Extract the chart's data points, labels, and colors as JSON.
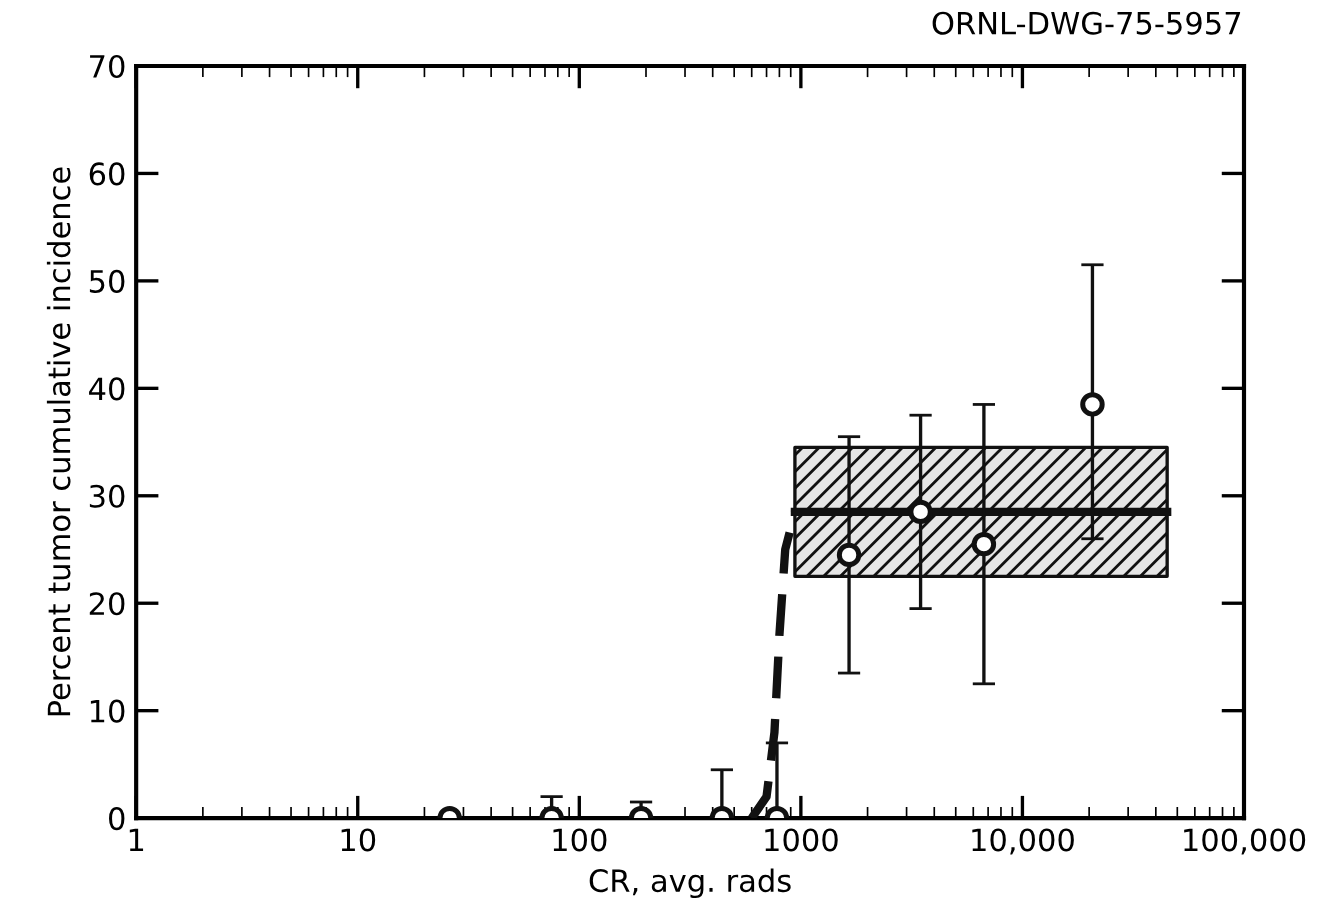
{
  "chart_data": {
    "type": "scatter",
    "xlabel": "CR, avg. rads",
    "ylabel": "Percent tumor cumulative incidence",
    "annotations": [
      "ORNL-DWG-75-5957"
    ],
    "log": "x",
    "xlim": [
      1,
      100000
    ],
    "xticks": [
      1,
      10,
      100,
      1000,
      {
        "value": 10000,
        "label": "10,000"
      },
      {
        "value": 100000,
        "label": "100,000"
      }
    ],
    "ylim": [
      0,
      70
    ],
    "yticks": [
      0,
      10,
      20,
      30,
      40,
      50,
      60,
      70
    ],
    "grid": false,
    "marker": "circle",
    "series": [
      {
        "type": "line",
        "marker": "none",
        "line_style": "dashed",
        "color": "#111111",
        "x": [
          600,
          700,
          760,
          800,
          850,
          940
        ],
        "values": [
          0,
          2,
          8,
          17,
          25,
          28.5
        ]
      },
      {
        "type": "line",
        "marker": "none",
        "line_style": "solid",
        "color": "#111111",
        "x": [
          940,
          45000
        ],
        "values": [
          28.5,
          28.5
        ],
        "lower": [
          22.5,
          22.5
        ],
        "upper": [
          34.5,
          34.5
        ]
      },
      {
        "color": "#111111",
        "x": [
          26,
          75,
          190,
          440,
          780,
          1650,
          3470,
          6700,
          20700
        ],
        "values": [
          0,
          0,
          0,
          0,
          0,
          24.5,
          28.5,
          25.5,
          38.5
        ],
        "errors": [
          null,
          [
            0,
            2
          ],
          [
            0,
            1.5
          ],
          [
            0,
            4.5
          ],
          [
            0,
            7
          ],
          [
            13.5,
            35.5
          ],
          [
            19.5,
            37.5
          ],
          [
            12.5,
            38.5
          ],
          [
            26,
            51.5
          ]
        ]
      }
    ]
  }
}
